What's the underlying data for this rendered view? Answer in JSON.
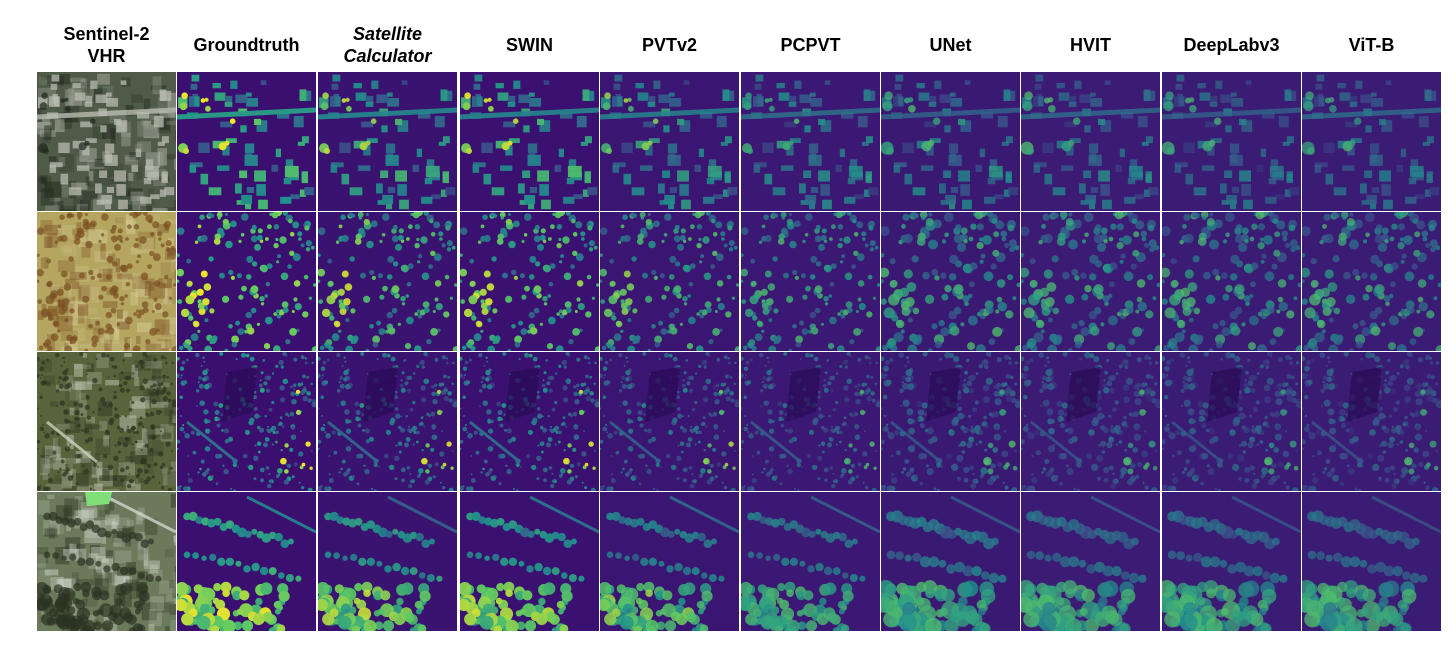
{
  "figure": {
    "columns": [
      {
        "label": "Sentinel-2\nVHR",
        "italic": false,
        "kind": "rgb"
      },
      {
        "label": "Groundtruth",
        "italic": false,
        "kind": "map",
        "strength": 1.0
      },
      {
        "label": "Satellite\nCalculator",
        "italic": true,
        "kind": "map",
        "strength": 0.85
      },
      {
        "label": "SWIN",
        "italic": false,
        "kind": "map",
        "strength": 0.9
      },
      {
        "label": "PVTv2",
        "italic": false,
        "kind": "map",
        "strength": 0.72
      },
      {
        "label": "PCPVT",
        "italic": false,
        "kind": "map",
        "strength": 0.62
      },
      {
        "label": "UNet",
        "italic": false,
        "kind": "map",
        "strength": 0.55
      },
      {
        "label": "HVIT",
        "italic": false,
        "kind": "map",
        "strength": 0.48
      },
      {
        "label": "DeepLabv3",
        "italic": false,
        "kind": "map",
        "strength": 0.45
      },
      {
        "label": "ViT-B",
        "italic": false,
        "kind": "map",
        "strength": 0.42
      }
    ],
    "rows": [
      {
        "scene": "suburban-road",
        "rgb_base": "#4f5a48",
        "rgb_light": "#b8bbb0",
        "rgb_dark": "#1e261c"
      },
      {
        "scene": "sparse-trees",
        "rgb_base": "#b4a560",
        "rgb_light": "#d8cf9a",
        "rgb_dark": "#7a4e22"
      },
      {
        "scene": "hillside-forest",
        "rgb_base": "#59633c",
        "rgb_light": "#c9cfc0",
        "rgb_dark": "#2c3420"
      },
      {
        "scene": "river-trees",
        "rgb_base": "#6b7a5a",
        "rgb_light": "#cfd6cc",
        "rgb_dark": "#2b3322"
      }
    ],
    "colors": {
      "viridis_low": "#3b0f6f",
      "viridis_mid": "#3b528b",
      "viridis_teal": "#21918c",
      "viridis_green": "#5ec962",
      "viridis_yellow": "#fde725",
      "background": "#ffffff"
    }
  }
}
